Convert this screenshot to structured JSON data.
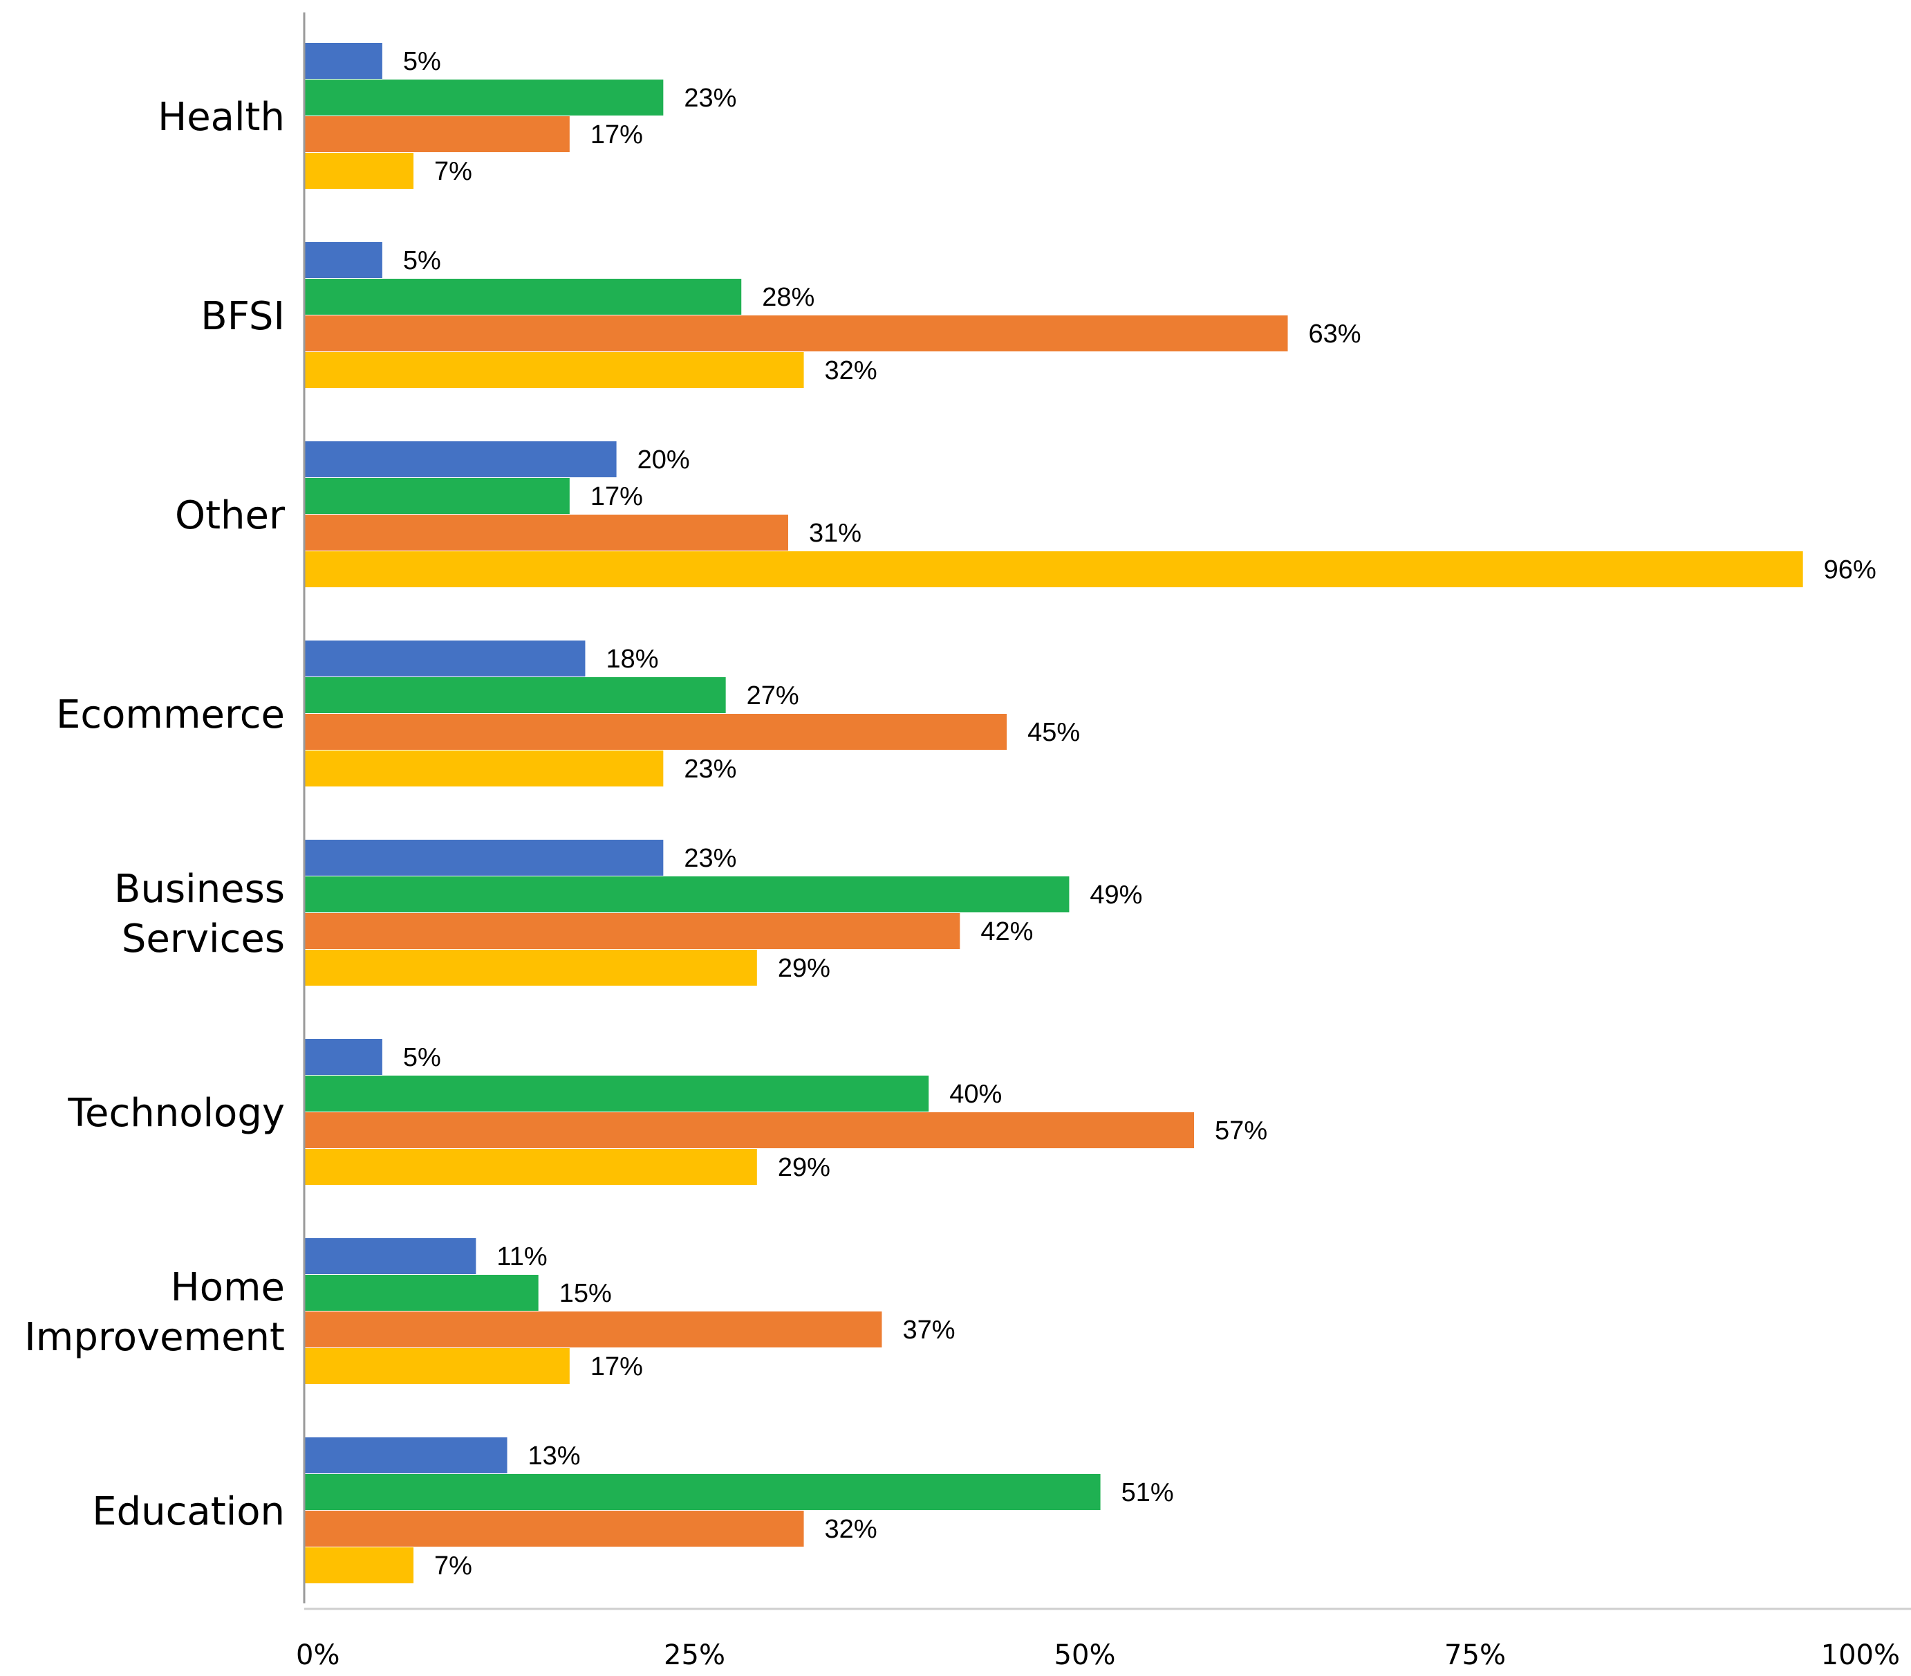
{
  "chart_data": {
    "type": "bar",
    "orientation": "horizontal",
    "title": "",
    "xlabel": "",
    "ylabel": "",
    "xlim": [
      0,
      100
    ],
    "grid": false,
    "legend": "none",
    "categories": [
      [
        "Health"
      ],
      [
        "BFSI"
      ],
      [
        "Other"
      ],
      [
        "Ecommerce"
      ],
      [
        "Business",
        "Services"
      ],
      [
        "Technology"
      ],
      [
        "Home",
        "Improvement"
      ],
      [
        "Education"
      ]
    ],
    "x_ticks": [
      "0%",
      "25%",
      "50%",
      "75%",
      "100%"
    ],
    "x_tick_values": [
      0,
      25,
      50,
      75,
      100
    ],
    "series": [
      {
        "color": "#4472C4",
        "values": [
          5,
          5,
          20,
          18,
          23,
          5,
          11,
          13
        ],
        "labels": [
          "5%",
          "5%",
          "20%",
          "18%",
          "23%",
          "5%",
          "11%",
          "13%"
        ]
      },
      {
        "color": "#1FB152",
        "values": [
          23,
          28,
          17,
          27,
          49,
          40,
          15,
          51
        ],
        "labels": [
          "23%",
          "28%",
          "17%",
          "27%",
          "49%",
          "40%",
          "15%",
          "51%"
        ]
      },
      {
        "color": "#ED7D31",
        "values": [
          17,
          63,
          31,
          45,
          42,
          57,
          37,
          32
        ],
        "labels": [
          "17%",
          "63%",
          "31%",
          "45%",
          "42%",
          "57%",
          "37%",
          "32%"
        ]
      },
      {
        "color": "#FFC000",
        "values": [
          7,
          32,
          96,
          23,
          29,
          29,
          17,
          7
        ],
        "labels": [
          "7%",
          "32%",
          "96%",
          "23%",
          "29%",
          "29%",
          "17%",
          "7%"
        ]
      }
    ]
  }
}
